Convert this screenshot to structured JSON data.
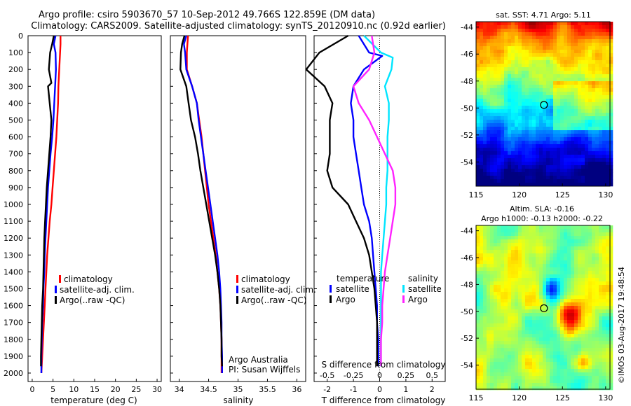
{
  "header": {
    "line1": "Argo profile: csiro 5903670_57 10-Sep-2012 49.766S 122.859E (DM data)",
    "line2": "Climatology: CARS2009. Satellite-adjusted climatology: synTS_20120910.nc (0.92d earlier)"
  },
  "colors": {
    "climatology": "#ff0000",
    "satellite": "#0000ff",
    "argo": "#000000",
    "sal_satellite": "#00e5ff",
    "sal_argo": "#ff22ff"
  },
  "depth_ticks": [
    "0",
    "100",
    "200",
    "300",
    "400",
    "500",
    "600",
    "700",
    "800",
    "900",
    "1000",
    "1100",
    "1200",
    "1300",
    "1400",
    "1500",
    "1600",
    "1700",
    "1800",
    "1900",
    "2000"
  ],
  "legend": {
    "climatology": "climatology",
    "satellite_clim": "satellite-adj. clim.",
    "argo": "Argo(..raw -QC)",
    "diff_temperature": "temperature",
    "diff_salinity": "salinity",
    "diff_satellite": "satellite",
    "diff_argo": "Argo"
  },
  "credits": {
    "program": "Argo Australia",
    "pi": "PI: Susan Wijffels",
    "watermark": "©IMOS 03-Aug-2017 19:48:54"
  },
  "chart_data": [
    {
      "type": "line",
      "name": "temperature",
      "xlabel": "temperature (deg C)",
      "ylabel": "",
      "xlim": [
        -1,
        31
      ],
      "ylim": [
        2050,
        0
      ],
      "x_ticks": [
        "0",
        "5",
        "10",
        "15",
        "20",
        "25",
        "30"
      ],
      "series": [
        {
          "name": "climatology",
          "x": [
            6.8,
            6.8,
            6.7,
            6.5,
            6.3,
            6.2,
            6.0,
            5.8,
            5.5,
            5.2,
            4.9,
            4.6,
            4.2,
            3.9,
            3.6,
            3.4,
            3.2,
            3.0,
            2.8,
            2.6,
            2.4,
            2.2
          ],
          "y": [
            0,
            50,
            100,
            200,
            300,
            400,
            500,
            600,
            700,
            800,
            900,
            1000,
            1100,
            1200,
            1300,
            1400,
            1500,
            1600,
            1700,
            1800,
            1900,
            2000
          ]
        },
        {
          "name": "satellite-adj. clim.",
          "x": [
            5.6,
            5.2,
            5.6,
            5.7,
            5.5,
            5.3,
            5.1,
            4.8,
            4.4,
            4.1,
            3.8,
            3.6,
            3.4,
            3.2,
            3.0,
            2.9,
            2.7,
            2.6,
            2.4,
            2.3,
            2.2,
            2.2
          ],
          "y": [
            0,
            50,
            100,
            200,
            300,
            400,
            500,
            600,
            700,
            800,
            900,
            1000,
            1100,
            1200,
            1300,
            1400,
            1500,
            1600,
            1700,
            1800,
            1900,
            2000
          ]
        },
        {
          "name": "Argo(..raw -QC)",
          "x": [
            5.2,
            4.8,
            4.3,
            4.0,
            4.6,
            3.8,
            4.2,
            4.6,
            4.4,
            4.1,
            3.8,
            3.5,
            3.3,
            3.1,
            2.9,
            2.8,
            2.7,
            2.6,
            2.4,
            2.3,
            2.2,
            2.1,
            2.1
          ],
          "y": [
            0,
            50,
            100,
            200,
            280,
            300,
            400,
            500,
            600,
            700,
            800,
            900,
            1000,
            1100,
            1200,
            1300,
            1400,
            1500,
            1600,
            1700,
            1800,
            1900,
            1960
          ]
        }
      ]
    },
    {
      "type": "line",
      "name": "salinity",
      "xlabel": "salinity",
      "ylabel": "",
      "xlim": [
        33.85,
        36.15
      ],
      "ylim": [
        2050,
        0
      ],
      "x_ticks": [
        "34",
        "34.5",
        "35",
        "35.5",
        "36"
      ],
      "series": [
        {
          "name": "climatology",
          "x": [
            34.15,
            34.14,
            34.13,
            34.13,
            34.22,
            34.3,
            34.34,
            34.38,
            34.41,
            34.44,
            34.47,
            34.5,
            34.54,
            34.58,
            34.62,
            34.65,
            34.68,
            34.7,
            34.71,
            34.72,
            34.72,
            34.72
          ],
          "y": [
            0,
            50,
            100,
            200,
            300,
            400,
            500,
            600,
            700,
            800,
            900,
            1000,
            1100,
            1200,
            1300,
            1400,
            1500,
            1600,
            1700,
            1800,
            1900,
            2000
          ]
        },
        {
          "name": "satellite-adj. clim.",
          "x": [
            34.12,
            34.08,
            34.1,
            34.12,
            34.22,
            34.3,
            34.33,
            34.37,
            34.41,
            34.45,
            34.49,
            34.53,
            34.57,
            34.61,
            34.65,
            34.68,
            34.7,
            34.71,
            34.72,
            34.72,
            34.73,
            34.73
          ],
          "y": [
            0,
            50,
            100,
            200,
            300,
            400,
            500,
            600,
            700,
            800,
            900,
            1000,
            1100,
            1200,
            1300,
            1400,
            1500,
            1600,
            1700,
            1800,
            1900,
            2000
          ]
        },
        {
          "name": "Argo(..raw -QC)",
          "x": [
            34.09,
            34.05,
            34.03,
            34.02,
            34.12,
            34.16,
            34.2,
            34.27,
            34.32,
            34.36,
            34.41,
            34.46,
            34.51,
            34.56,
            34.61,
            34.65,
            34.68,
            34.7,
            34.71,
            34.72,
            34.72,
            34.73
          ],
          "y": [
            0,
            50,
            100,
            200,
            300,
            400,
            500,
            600,
            700,
            800,
            900,
            1000,
            1100,
            1200,
            1300,
            1400,
            1500,
            1600,
            1700,
            1800,
            1900,
            1960
          ]
        }
      ]
    },
    {
      "type": "line",
      "name": "difference from climatology",
      "xlabel": "T difference from climatology",
      "xlabel_top": "S difference from climatology",
      "xlim": [
        -2.5,
        2.5
      ],
      "ylim": [
        2050,
        0
      ],
      "x_ticks_T": [
        "-2",
        "-1",
        "0",
        "1",
        "2"
      ],
      "x_ticks_S": [
        "-0.5",
        "-0.25",
        "0",
        "0.25",
        "0.5"
      ],
      "series": [
        {
          "name": "temperature satellite",
          "x": [
            -0.8,
            -0.4,
            0.1,
            -0.6,
            -1.0,
            -1.1,
            -1.0,
            -1.0,
            -0.9,
            -0.8,
            -0.7,
            -0.6,
            -0.4,
            -0.3,
            -0.25,
            -0.2,
            -0.15,
            -0.1,
            -0.1,
            -0.05,
            -0.05
          ],
          "y": [
            0,
            100,
            120,
            200,
            300,
            400,
            500,
            600,
            700,
            800,
            900,
            1000,
            1100,
            1200,
            1300,
            1400,
            1500,
            1600,
            1700,
            1800,
            1960
          ]
        },
        {
          "name": "temperature Argo",
          "x": [
            -1.2,
            -2.3,
            -2.8,
            -2.1,
            -1.8,
            -1.9,
            -1.9,
            -1.9,
            -2.0,
            -1.8,
            -1.2,
            -0.9,
            -0.6,
            -0.4,
            -0.3,
            -0.2,
            -0.15,
            -0.1,
            -0.1,
            -0.1
          ],
          "y": [
            0,
            100,
            200,
            300,
            400,
            500,
            600,
            700,
            800,
            900,
            1000,
            1100,
            1200,
            1300,
            1400,
            1500,
            1600,
            1700,
            1800,
            1960
          ]
        },
        {
          "name": "salinity satellite",
          "x": [
            -0.6,
            0.05,
            0.5,
            0.45,
            0.2,
            0.35,
            0.35,
            0.3,
            0.3,
            0.3,
            0.25,
            0.25,
            0.2,
            0.15,
            0.1,
            0.05,
            0.05,
            0.05,
            0.05,
            0.05,
            0.05
          ],
          "y": [
            0,
            100,
            130,
            200,
            300,
            400,
            500,
            600,
            700,
            800,
            900,
            1000,
            1100,
            1200,
            1300,
            1400,
            1500,
            1600,
            1700,
            1800,
            1960
          ]
        },
        {
          "name": "salinity Argo",
          "x": [
            -0.3,
            -0.2,
            -0.4,
            -1.0,
            -0.8,
            -0.4,
            -0.1,
            0.2,
            0.5,
            0.6,
            0.6,
            0.5,
            0.4,
            0.3,
            0.2,
            0.15,
            0.1,
            0.1,
            0.05,
            0.05
          ],
          "y": [
            0,
            100,
            200,
            300,
            400,
            500,
            600,
            700,
            800,
            900,
            1000,
            1100,
            1200,
            1300,
            1400,
            1500,
            1600,
            1700,
            1800,
            1960
          ]
        }
      ]
    },
    {
      "type": "heatmap",
      "name": "satellite SST map",
      "title": "sat. SST: 4.71  Argo: 5.11",
      "x_ticks": [
        "115",
        "120",
        "125",
        "130"
      ],
      "y_ticks": [
        "-44",
        "-46",
        "-48",
        "-50",
        "-52",
        "-54"
      ],
      "xlim": [
        115,
        130.5
      ],
      "ylim": [
        -55.8,
        -43.6
      ],
      "marker": {
        "lon": 122.86,
        "lat": -49.77
      }
    },
    {
      "type": "heatmap",
      "name": "altimetry SLA map",
      "title": "Altim. SLA: -0.16",
      "subtitle": "Argo h1000: -0.13 h2000: -0.22",
      "x_ticks": [
        "115",
        "120",
        "125",
        "130"
      ],
      "y_ticks": [
        "-44",
        "-46",
        "-48",
        "-50",
        "-52",
        "-54"
      ],
      "xlim": [
        115,
        130.5
      ],
      "ylim": [
        -55.8,
        -43.6
      ],
      "marker": {
        "lon": 122.86,
        "lat": -49.77
      }
    }
  ]
}
